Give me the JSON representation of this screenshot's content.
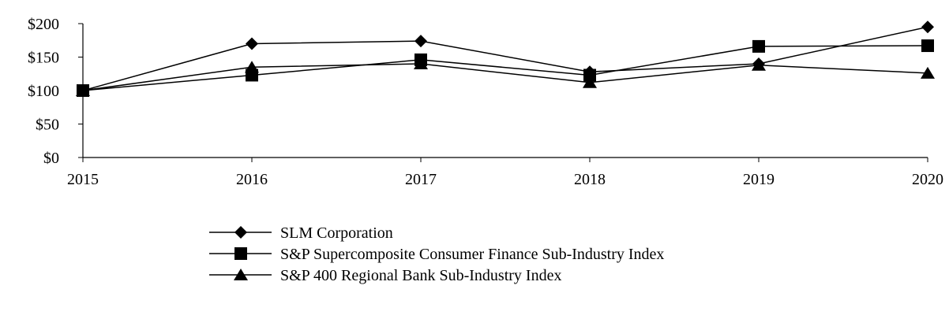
{
  "chart_data": {
    "type": "line",
    "x": [
      "2015",
      "2016",
      "2017",
      "2018",
      "2019",
      "2020"
    ],
    "ylim": [
      0,
      200
    ],
    "yticks": [
      {
        "value": 0,
        "label": "$0"
      },
      {
        "value": 50,
        "label": "$50"
      },
      {
        "value": 100,
        "label": "$100"
      },
      {
        "value": 150,
        "label": "$150"
      },
      {
        "value": 200,
        "label": "$200"
      }
    ],
    "grid": false,
    "legend_position": "bottom",
    "series": [
      {
        "name": "SLM Corporation",
        "marker": "diamond",
        "color": "#000000",
        "values": [
          100,
          170,
          174,
          128,
          140,
          195
        ]
      },
      {
        "name": "S&P Supercomposite Consumer Finance Sub-Industry Index",
        "marker": "square",
        "color": "#000000",
        "values": [
          100,
          123,
          146,
          123,
          166,
          167
        ]
      },
      {
        "name": "S&P 400 Regional Bank Sub-Industry Index",
        "marker": "triangle",
        "color": "#000000",
        "values": [
          100,
          135,
          140,
          112,
          138,
          126
        ]
      }
    ]
  }
}
